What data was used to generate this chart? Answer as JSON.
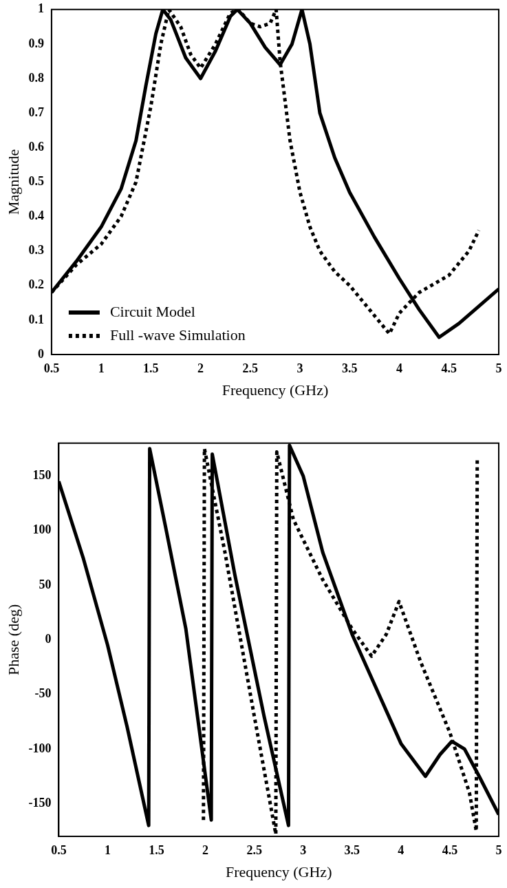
{
  "chart_data": [
    {
      "type": "line",
      "xlabel": "Frequency (GHz)",
      "ylabel": "Magnitude",
      "xlim": [
        0.5,
        5
      ],
      "ylim": [
        0,
        1
      ],
      "xticks": [
        0.5,
        1,
        1.5,
        2,
        2.5,
        3,
        3.5,
        4,
        4.5,
        5
      ],
      "yticks": [
        0,
        0.1,
        0.2,
        0.3,
        0.4,
        0.5,
        0.6,
        0.7,
        0.8,
        0.9,
        1
      ],
      "legend": "bottom left",
      "grid": false,
      "marker": "none",
      "series": [
        {
          "name": "Circuit Model",
          "color": "#000000",
          "line_style": "solid",
          "x": [
            0.5,
            0.75,
            1.0,
            1.2,
            1.35,
            1.45,
            1.55,
            1.62,
            1.7,
            1.85,
            2.0,
            2.15,
            2.3,
            2.37,
            2.5,
            2.65,
            2.8,
            2.92,
            3.02,
            3.1,
            3.2,
            3.35,
            3.5,
            3.75,
            4.0,
            4.2,
            4.4,
            4.6,
            4.8,
            5.0
          ],
          "values": [
            0.18,
            0.27,
            0.37,
            0.48,
            0.62,
            0.78,
            0.93,
            1.0,
            0.97,
            0.86,
            0.8,
            0.88,
            0.98,
            1.0,
            0.96,
            0.89,
            0.84,
            0.9,
            1.0,
            0.9,
            0.7,
            0.57,
            0.47,
            0.34,
            0.22,
            0.13,
            0.05,
            0.09,
            0.14,
            0.19
          ]
        },
        {
          "name": "Full -wave Simulation",
          "color": "#000000",
          "line_style": "dotted",
          "x": [
            0.5,
            0.75,
            1.0,
            1.2,
            1.35,
            1.5,
            1.6,
            1.68,
            1.8,
            1.9,
            2.0,
            2.15,
            2.3,
            2.38,
            2.5,
            2.6,
            2.7,
            2.76,
            2.8,
            2.9,
            3.0,
            3.1,
            3.2,
            3.35,
            3.5,
            3.7,
            3.9,
            4.0,
            4.2,
            4.5,
            4.7,
            4.8
          ],
          "values": [
            0.18,
            0.26,
            0.32,
            0.4,
            0.5,
            0.72,
            0.9,
            1.0,
            0.95,
            0.87,
            0.83,
            0.9,
            0.99,
            1.0,
            0.96,
            0.95,
            0.96,
            1.0,
            0.85,
            0.62,
            0.47,
            0.37,
            0.3,
            0.24,
            0.2,
            0.13,
            0.06,
            0.12,
            0.18,
            0.23,
            0.3,
            0.36
          ]
        }
      ]
    },
    {
      "type": "line",
      "xlabel": "Frequency (GHz)",
      "ylabel": "Phase (deg)",
      "xlim": [
        0.5,
        5
      ],
      "ylim": [
        -180,
        180
      ],
      "xticks": [
        0.5,
        1,
        1.5,
        2,
        2.5,
        3,
        3.5,
        4,
        4.5,
        5
      ],
      "yticks": [
        -150,
        -100,
        -50,
        0,
        50,
        100,
        150
      ],
      "legend": false,
      "grid": false,
      "marker": "none",
      "series": [
        {
          "color": "#000000",
          "line_style": "solid",
          "x": [
            0.5,
            0.75,
            1.0,
            1.2,
            1.42,
            1.43,
            1.6,
            1.8,
            2.06,
            2.07,
            2.3,
            2.6,
            2.85,
            2.86,
            3.0,
            3.2,
            3.5,
            3.8,
            4.0,
            4.25,
            4.4,
            4.52,
            4.65,
            4.8,
            5.0
          ],
          "values": [
            145,
            75,
            -5,
            -80,
            -170,
            175,
            100,
            10,
            -165,
            170,
            60,
            -70,
            -170,
            178,
            150,
            80,
            5,
            -55,
            -95,
            -125,
            -105,
            -93,
            -100,
            -125,
            -160
          ]
        },
        {
          "color": "#000000",
          "line_style": "dotted",
          "x": [
            1.98,
            1.99,
            2.2,
            2.5,
            2.72,
            2.73,
            2.9,
            3.2,
            3.5,
            3.7,
            3.85,
            3.98,
            4.2,
            4.5,
            4.7,
            4.77,
            4.78
          ],
          "values": [
            -165,
            175,
            80,
            -70,
            -178,
            172,
            110,
            55,
            10,
            -15,
            5,
            35,
            -20,
            -85,
            -140,
            -175,
            165
          ]
        }
      ]
    }
  ]
}
